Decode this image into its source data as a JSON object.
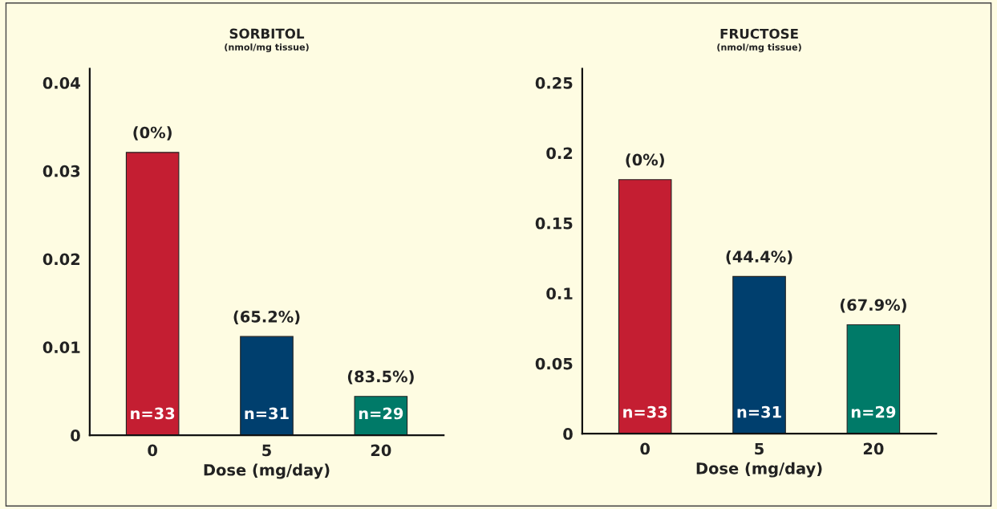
{
  "chart_data": [
    {
      "type": "bar",
      "title": "SORBITOL",
      "subtitle": "(nmol/mg tissue)",
      "xlabel": "Dose (mg/day)",
      "categories": [
        "0",
        "5",
        "20"
      ],
      "values": [
        0.0321,
        0.0112,
        0.0044
      ],
      "colors": [
        "#c41e32",
        "#003f6e",
        "#007a68"
      ],
      "annotations": [
        {
          "text": "(0%)",
          "x": "0",
          "y": 0.0321
        },
        {
          "text": "(65.2%)",
          "x": "5",
          "y": 0.0112
        },
        {
          "text": "(83.5%)",
          "x": "20",
          "y": 0.0044
        },
        "n=33",
        "n=31",
        "n=29"
      ],
      "ylim": [
        0,
        0.0416
      ],
      "yticks": [
        0,
        0.01,
        0.02,
        0.03,
        0.04
      ],
      "grid": false
    },
    {
      "type": "bar",
      "title": "FRUCTOSE",
      "subtitle": "(nmol/mg tissue)",
      "xlabel": "Dose (mg/day)",
      "categories": [
        "0",
        "5",
        "20"
      ],
      "values": [
        0.181,
        0.112,
        0.0776
      ],
      "colors": [
        "#c41e32",
        "#003f6e",
        "#007a68"
      ],
      "annotations": [
        {
          "text": "(0%)",
          "x": "0",
          "y": 0.181
        },
        {
          "text": "(44.4%)",
          "x": "5",
          "y": 0.112
        },
        {
          "text": "(67.9%)",
          "x": "20",
          "y": 0.0776
        },
        "n=33",
        "n=31",
        "n=29"
      ],
      "ylim": [
        0,
        0.26
      ],
      "yticks": [
        0,
        0.05,
        0.1,
        0.15,
        0.2,
        0.25
      ],
      "grid": false
    }
  ]
}
